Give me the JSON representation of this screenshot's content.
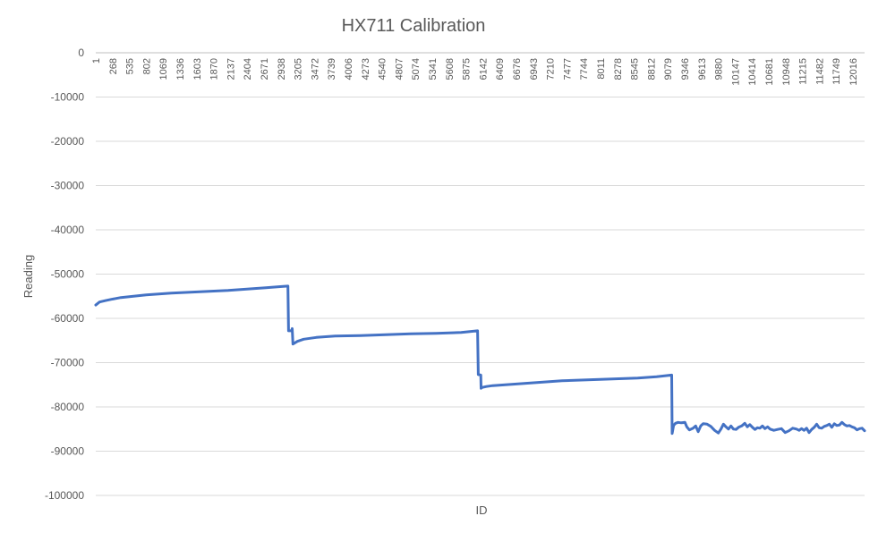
{
  "chart_data": {
    "type": "line",
    "title": "HX711 Calibration",
    "xlabel": "ID",
    "ylabel": "Reading",
    "ylim": [
      -100000,
      0
    ],
    "yticks": [
      0,
      -10000,
      -20000,
      -30000,
      -40000,
      -50000,
      -60000,
      -70000,
      -80000,
      -90000,
      -100000
    ],
    "xlim": [
      1,
      12200
    ],
    "xticks": [
      1,
      268,
      535,
      802,
      1069,
      1336,
      1603,
      1870,
      2137,
      2404,
      2671,
      2938,
      3205,
      3472,
      3739,
      4006,
      4273,
      4540,
      4807,
      5074,
      5341,
      5608,
      5875,
      6142,
      6409,
      6676,
      6943,
      7210,
      7477,
      7744,
      8011,
      8278,
      8545,
      8812,
      9079,
      9346,
      9613,
      9880,
      10147,
      10414,
      10681,
      10948,
      11215,
      11482,
      11749,
      12016
    ],
    "grid": true,
    "legend": "none",
    "series": [
      {
        "color": "#4472c4",
        "x": [
          1,
          60,
          150,
          250,
          400,
          600,
          800,
          1000,
          1200,
          1500,
          1800,
          2100,
          2400,
          2700,
          2950,
          3050,
          3060,
          3110,
          3118,
          3130,
          3200,
          3300,
          3500,
          3800,
          4200,
          4600,
          5000,
          5400,
          5800,
          6060,
          6070,
          6110,
          6115,
          6135,
          6200,
          6300,
          6500,
          6800,
          7100,
          7400,
          7800,
          8200,
          8600,
          8900,
          9140,
          9146,
          9170,
          9200,
          9240,
          9290,
          9350,
          9380,
          9420,
          9480,
          9520,
          9560,
          9600,
          9640,
          9700,
          9760,
          9820,
          9880,
          9920,
          9960,
          10000,
          10040,
          10080,
          10120,
          10160,
          10200,
          10250,
          10300,
          10340,
          10380,
          10420,
          10460,
          10500,
          10540,
          10580,
          10620,
          10660,
          10700,
          10760,
          10820,
          10880,
          10940,
          11000,
          11060,
          11120,
          11160,
          11200,
          11240,
          11280,
          11320,
          11360,
          11400,
          11440,
          11480,
          11520,
          11560,
          11600,
          11640,
          11680,
          11720,
          11760,
          11800,
          11840,
          11880,
          11920,
          11960,
          12000,
          12040,
          12080,
          12120,
          12160,
          12200
        ],
        "values": [
          -57000,
          -56300,
          -56000,
          -55700,
          -55300,
          -55000,
          -54700,
          -54500,
          -54300,
          -54100,
          -53900,
          -53700,
          -53400,
          -53100,
          -52800,
          -52700,
          -62800,
          -62800,
          -62300,
          -65800,
          -65200,
          -64700,
          -64300,
          -64000,
          -63900,
          -63700,
          -63500,
          -63400,
          -63200,
          -62800,
          -72700,
          -72800,
          -75800,
          -75600,
          -75400,
          -75200,
          -75000,
          -74700,
          -74400,
          -74100,
          -73900,
          -73700,
          -73500,
          -73200,
          -72800,
          -86000,
          -84200,
          -83700,
          -83500,
          -83600,
          -83500,
          -84500,
          -85200,
          -84800,
          -84300,
          -85600,
          -84300,
          -83800,
          -83900,
          -84400,
          -85300,
          -85900,
          -85000,
          -83900,
          -84500,
          -85000,
          -84300,
          -85000,
          -85100,
          -84600,
          -84300,
          -83700,
          -84500,
          -84000,
          -84600,
          -85100,
          -84700,
          -84800,
          -84300,
          -84900,
          -84500,
          -85000,
          -85300,
          -85100,
          -84900,
          -85800,
          -85400,
          -84800,
          -85000,
          -85300,
          -84900,
          -85300,
          -84800,
          -85800,
          -85100,
          -84600,
          -83900,
          -84700,
          -84800,
          -84400,
          -84200,
          -83900,
          -84600,
          -83800,
          -84200,
          -84100,
          -83500,
          -84000,
          -84300,
          -84200,
          -84500,
          -84700,
          -85200,
          -84900,
          -84800,
          -85400
        ]
      }
    ]
  }
}
